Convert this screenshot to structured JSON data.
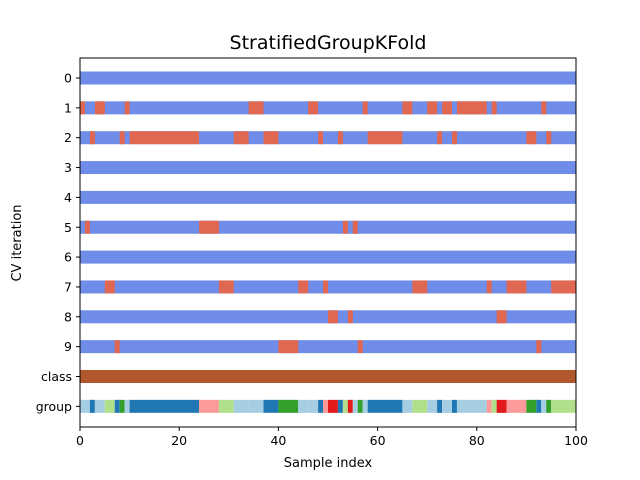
{
  "chart_data": {
    "type": "table",
    "title": "StratifiedGroupKFold",
    "xlabel": "Sample index",
    "ylabel": "CV iteration",
    "xlim": [
      0,
      100
    ],
    "x_ticks": [
      "0",
      "20",
      "40",
      "60",
      "80",
      "100"
    ],
    "x_tick_values": [
      0,
      20,
      40,
      60,
      80,
      100
    ],
    "row_labels": [
      "0",
      "1",
      "2",
      "3",
      "4",
      "5",
      "6",
      "7",
      "8",
      "9",
      "class",
      "group"
    ],
    "colors": {
      "train": "#6f8de8",
      "test": "#e06752",
      "class": "#b0582b"
    },
    "cv_test_intervals": [
      [],
      [
        [
          0,
          1
        ],
        [
          3,
          5
        ],
        [
          9,
          10
        ],
        [
          34,
          37
        ],
        [
          46,
          48
        ],
        [
          57,
          58
        ],
        [
          65,
          67
        ],
        [
          70,
          72
        ],
        [
          73,
          75
        ],
        [
          76,
          82
        ],
        [
          83,
          84
        ],
        [
          93,
          94
        ]
      ],
      [
        [
          2,
          3
        ],
        [
          8,
          9
        ],
        [
          10,
          24
        ],
        [
          31,
          34
        ],
        [
          37,
          40
        ],
        [
          48,
          49
        ],
        [
          52,
          53
        ],
        [
          58,
          65
        ],
        [
          72,
          73
        ],
        [
          75,
          76
        ],
        [
          90,
          92
        ],
        [
          94,
          95
        ]
      ],
      [],
      [],
      [
        [
          1,
          2
        ],
        [
          24,
          28
        ],
        [
          53,
          54
        ],
        [
          55,
          56
        ]
      ],
      [],
      [
        [
          5,
          7
        ],
        [
          28,
          31
        ],
        [
          44,
          46
        ],
        [
          49,
          50
        ],
        [
          67,
          70
        ],
        [
          82,
          83
        ],
        [
          86,
          90
        ],
        [
          95,
          100
        ]
      ],
      [
        [
          50,
          52
        ],
        [
          54,
          55
        ],
        [
          84,
          86
        ]
      ],
      [
        [
          7,
          8
        ],
        [
          40,
          44
        ],
        [
          56,
          57
        ],
        [
          92,
          93
        ]
      ]
    ],
    "class_values": [
      [
        0,
        100,
        "class 0"
      ]
    ],
    "group_segments": [
      [
        0,
        2,
        "#a6cee3"
      ],
      [
        2,
        3,
        "#1f78b4"
      ],
      [
        3,
        5,
        "#a6cee3"
      ],
      [
        5,
        7,
        "#b2df8a"
      ],
      [
        7,
        8,
        "#1f78b4"
      ],
      [
        8,
        9,
        "#33a02c"
      ],
      [
        9,
        10,
        "#a6cee3"
      ],
      [
        10,
        24,
        "#1f78b4"
      ],
      [
        24,
        28,
        "#fb9a99"
      ],
      [
        28,
        31,
        "#b2df8a"
      ],
      [
        31,
        34,
        "#a6cee3"
      ],
      [
        34,
        37,
        "#a6cee3"
      ],
      [
        37,
        40,
        "#1f78b4"
      ],
      [
        40,
        44,
        "#33a02c"
      ],
      [
        44,
        46,
        "#a6cee3"
      ],
      [
        46,
        48,
        "#a6cee3"
      ],
      [
        48,
        49,
        "#1f78b4"
      ],
      [
        49,
        50,
        "#fb9a99"
      ],
      [
        50,
        52,
        "#e31a1c"
      ],
      [
        52,
        53,
        "#1f78b4"
      ],
      [
        53,
        54,
        "#b2df8a"
      ],
      [
        54,
        55,
        "#e31a1c"
      ],
      [
        55,
        56,
        "#a6cee3"
      ],
      [
        56,
        57,
        "#33a02c"
      ],
      [
        57,
        58,
        "#a6cee3"
      ],
      [
        58,
        65,
        "#1f78b4"
      ],
      [
        65,
        67,
        "#a6cee3"
      ],
      [
        67,
        70,
        "#b2df8a"
      ],
      [
        70,
        72,
        "#a6cee3"
      ],
      [
        72,
        73,
        "#1f78b4"
      ],
      [
        73,
        75,
        "#a6cee3"
      ],
      [
        75,
        76,
        "#1f78b4"
      ],
      [
        76,
        82,
        "#a6cee3"
      ],
      [
        82,
        83,
        "#fb9a99"
      ],
      [
        83,
        84,
        "#b2df8a"
      ],
      [
        84,
        86,
        "#e31a1c"
      ],
      [
        86,
        90,
        "#fb9a99"
      ],
      [
        90,
        92,
        "#33a02c"
      ],
      [
        92,
        93,
        "#1f78b4"
      ],
      [
        93,
        94,
        "#a6cee3"
      ],
      [
        94,
        95,
        "#33a02c"
      ],
      [
        95,
        100,
        "#b2df8a"
      ]
    ]
  }
}
